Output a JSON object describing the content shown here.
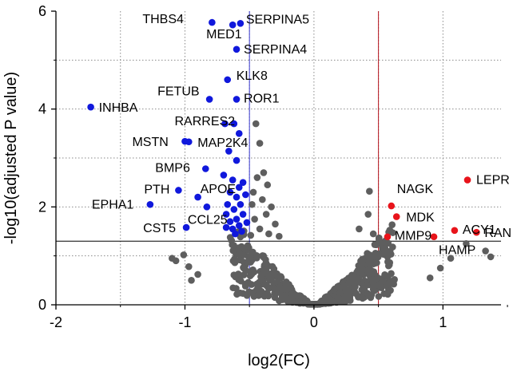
{
  "chart_data": {
    "type": "scatter",
    "title": "",
    "xlabel": "log2(FC)",
    "ylabel": "-log10(adjusted P value)",
    "xlim": [
      -2,
      1.45
    ],
    "ylim": [
      0,
      6
    ],
    "xticks": [
      -2,
      -1,
      0,
      1
    ],
    "yticks": [
      0,
      2,
      4,
      6
    ],
    "grid": true,
    "thresholds": {
      "fc_low": -0.5,
      "fc_high": 0.5,
      "p": 1.3
    },
    "colors": {
      "up": "#e8141b",
      "down": "#1018dc",
      "ns": "#5e5e5e",
      "fc_low_line": "#3a3ad0",
      "fc_high_line": "#b5121b",
      "p_line": "#000000",
      "grid": "#8a8a8a"
    },
    "labeled_points": [
      {
        "gene": "THBS4",
        "x": -0.79,
        "y": 5.77,
        "group": "down"
      },
      {
        "gene": "MED1",
        "x": -0.63,
        "y": 5.72,
        "group": "down"
      },
      {
        "gene": "SERPINA5",
        "x": -0.57,
        "y": 5.75,
        "group": "down"
      },
      {
        "gene": "SERPINA4",
        "x": -0.6,
        "y": 5.22,
        "group": "down"
      },
      {
        "gene": "FETUB",
        "x": -0.81,
        "y": 4.2,
        "group": "down"
      },
      {
        "gene": "KLK8",
        "x": -0.67,
        "y": 4.6,
        "group": "down"
      },
      {
        "gene": "ROR1",
        "x": -0.6,
        "y": 4.2,
        "group": "down"
      },
      {
        "gene": "INHBA",
        "x": -1.73,
        "y": 4.04,
        "group": "down"
      },
      {
        "gene": "RARRES2",
        "x": -0.69,
        "y": 3.7,
        "group": "down"
      },
      {
        "gene": "MSTN",
        "x": -1.0,
        "y": 3.34,
        "group": "down"
      },
      {
        "gene": "MAP2K4",
        "x": -0.97,
        "y": 3.33,
        "group": "down"
      },
      {
        "gene": "BMP6",
        "x": -0.84,
        "y": 2.78,
        "group": "down"
      },
      {
        "gene": "PTH",
        "x": -1.05,
        "y": 2.34,
        "group": "down"
      },
      {
        "gene": "APOE",
        "x": -0.9,
        "y": 2.2,
        "group": "down"
      },
      {
        "gene": "EPHA1",
        "x": -1.27,
        "y": 2.05,
        "group": "down"
      },
      {
        "gene": "CCL25",
        "x": -0.83,
        "y": 2.0,
        "group": "down"
      },
      {
        "gene": "CST5",
        "x": -0.99,
        "y": 1.58,
        "group": "down"
      },
      {
        "gene": "LEPR",
        "x": 1.19,
        "y": 2.55,
        "group": "up"
      },
      {
        "gene": "NAGK",
        "x": 0.6,
        "y": 2.02,
        "group": "up"
      },
      {
        "gene": "MDK",
        "x": 0.64,
        "y": 1.8,
        "group": "up"
      },
      {
        "gene": "ACY1",
        "x": 1.09,
        "y": 1.52,
        "group": "up"
      },
      {
        "gene": "MMP9",
        "x": 0.57,
        "y": 1.39,
        "group": "up"
      },
      {
        "gene": "HAMP",
        "x": 0.93,
        "y": 1.39,
        "group": "up"
      },
      {
        "gene": "RAN",
        "x": 1.26,
        "y": 1.48,
        "group": "up"
      }
    ],
    "unlabeled_significant": [
      {
        "x": -0.62,
        "y": 3.7,
        "group": "down"
      },
      {
        "x": -0.66,
        "y": 3.14,
        "group": "down"
      },
      {
        "x": -0.58,
        "y": 3.5,
        "group": "down"
      },
      {
        "x": -0.6,
        "y": 2.95,
        "group": "down"
      },
      {
        "x": -0.7,
        "y": 2.65,
        "group": "down"
      },
      {
        "x": -0.63,
        "y": 2.55,
        "group": "down"
      },
      {
        "x": -0.58,
        "y": 2.4,
        "group": "down"
      },
      {
        "x": -0.55,
        "y": 2.5,
        "group": "down"
      },
      {
        "x": -0.65,
        "y": 2.3,
        "group": "down"
      },
      {
        "x": -0.6,
        "y": 2.2,
        "group": "down"
      },
      {
        "x": -0.67,
        "y": 2.05,
        "group": "down"
      },
      {
        "x": -0.57,
        "y": 2.05,
        "group": "down"
      },
      {
        "x": -0.62,
        "y": 1.95,
        "group": "down"
      },
      {
        "x": -0.68,
        "y": 1.85,
        "group": "down"
      },
      {
        "x": -0.55,
        "y": 1.85,
        "group": "down"
      },
      {
        "x": -0.6,
        "y": 1.75,
        "group": "down"
      },
      {
        "x": -0.65,
        "y": 1.7,
        "group": "down"
      },
      {
        "x": -0.58,
        "y": 1.62,
        "group": "down"
      },
      {
        "x": -0.63,
        "y": 1.55,
        "group": "down"
      },
      {
        "x": -0.68,
        "y": 1.58,
        "group": "down"
      },
      {
        "x": -0.56,
        "y": 1.5,
        "group": "down"
      },
      {
        "x": -0.61,
        "y": 1.45,
        "group": "down"
      },
      {
        "x": -0.53,
        "y": 2.25,
        "group": "down"
      },
      {
        "x": -0.52,
        "y": 1.68,
        "group": "down"
      }
    ],
    "ns_count": 520,
    "ns_sample_points": [
      {
        "x": -0.45,
        "y": 3.7
      },
      {
        "x": -0.42,
        "y": 3.3
      },
      {
        "x": -0.39,
        "y": 2.7
      },
      {
        "x": -0.36,
        "y": 2.45
      },
      {
        "x": -0.44,
        "y": 2.6
      },
      {
        "x": -0.47,
        "y": 2.3
      },
      {
        "x": -0.4,
        "y": 2.15
      },
      {
        "x": -0.33,
        "y": 2.0
      },
      {
        "x": -0.48,
        "y": 2.05
      },
      {
        "x": -0.37,
        "y": 1.85
      },
      {
        "x": -0.46,
        "y": 1.75
      },
      {
        "x": -0.3,
        "y": 1.65
      },
      {
        "x": -0.42,
        "y": 1.55
      },
      {
        "x": -0.35,
        "y": 1.45
      },
      {
        "x": -0.27,
        "y": 1.4
      },
      {
        "x": -0.49,
        "y": 1.42
      },
      {
        "x": 0.43,
        "y": 2.32
      },
      {
        "x": 0.42,
        "y": 1.85
      },
      {
        "x": 0.35,
        "y": 1.55
      },
      {
        "x": 0.46,
        "y": 1.45
      },
      {
        "x": 1.06,
        "y": 0.95
      },
      {
        "x": 1.18,
        "y": 1.25
      },
      {
        "x": 1.33,
        "y": 1.1
      },
      {
        "x": 1.37,
        "y": 0.98
      },
      {
        "x": 0.98,
        "y": 0.75
      },
      {
        "x": 0.9,
        "y": 0.55
      },
      {
        "x": -1.01,
        "y": 1.02
      },
      {
        "x": -1.1,
        "y": 0.95
      },
      {
        "x": -0.97,
        "y": 0.78
      },
      {
        "x": -0.9,
        "y": 0.62
      },
      {
        "x": -1.07,
        "y": 0.9
      },
      {
        "x": -0.95,
        "y": 0.5
      }
    ]
  }
}
